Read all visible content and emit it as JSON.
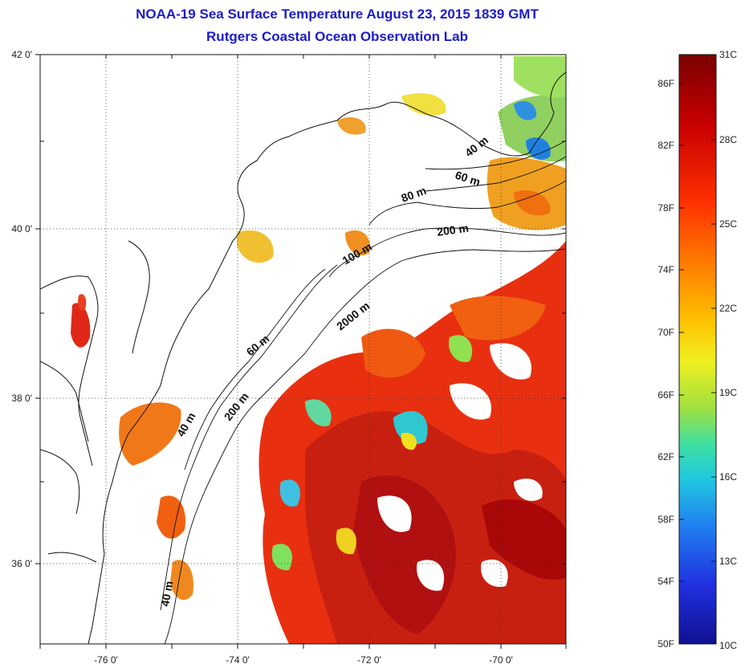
{
  "title": {
    "line1": "NOAA-19 Sea Surface Temperature August 23, 2015 1839 GMT",
    "line2": "Rutgers Coastal Ocean Observation Lab"
  },
  "axes": {
    "lat_labels": [
      "42 0'",
      "40 0'",
      "38 0'",
      "36 0'"
    ],
    "lon_labels": [
      "-76 0'",
      "-74 0'",
      "-72 0'",
      "-70 0'"
    ]
  },
  "contours": [
    "40 m",
    "60 m",
    "80 m",
    "200 m",
    "100 m",
    "2000 m",
    "60 m",
    "40 m",
    "200 m",
    "40 m"
  ],
  "colorbar": {
    "f_labels": [
      "86F",
      "82F",
      "78F",
      "74F",
      "70F",
      "66F",
      "62F",
      "58F",
      "54F",
      "50F"
    ],
    "c_labels": [
      "31C",
      "28C",
      "25C",
      "22C",
      "19C",
      "16C",
      "13C",
      "10C"
    ],
    "colors": [
      "#7a0000",
      "#c80000",
      "#ff2a00",
      "#ff7a00",
      "#ffc000",
      "#f0f020",
      "#a0e040",
      "#40e0a0",
      "#20c8e0",
      "#2080f0",
      "#2030e0",
      "#101090"
    ]
  }
}
